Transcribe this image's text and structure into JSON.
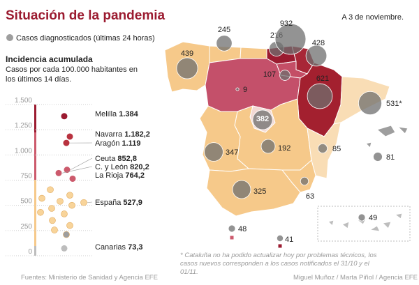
{
  "header": {
    "title": "Situación de la pandemia",
    "date": "A 3 de noviembre."
  },
  "legend": {
    "bubbles": "Casos diagnosticados (últimas 24 horas)"
  },
  "incidence": {
    "title": "Incidencia acumulada",
    "subtitle": "Casos por cada 100.000 habitantes en los últimos 14 días.",
    "ylim": [
      0,
      1500
    ],
    "yticks": [
      {
        "value": 1500,
        "label": "1.500"
      },
      {
        "value": 1250,
        "label": "1.250"
      },
      {
        "value": 1000,
        "label": "1.000"
      },
      750,
      500,
      250,
      0
    ],
    "labeled": [
      {
        "name": "Melilla",
        "value": 1384,
        "label": "1.384",
        "color": "#9b1b30"
      },
      {
        "name": "Navarra",
        "value": 1182.2,
        "label": "1.182,2",
        "color": "#b8323f"
      },
      {
        "name": "Aragón",
        "value": 1119,
        "label": "1.119",
        "color": "#b8323f"
      },
      {
        "name": "Ceuta",
        "value": 852.8,
        "label": "852,8",
        "color": "#cc5a6c"
      },
      {
        "name": "C. y León",
        "value": 820.2,
        "label": "820,2",
        "color": "#cc5a6c"
      },
      {
        "name": "La Rioja",
        "value": 764.2,
        "label": "764,2",
        "color": "#cc5a6c"
      },
      {
        "name": "España",
        "value": 527.9,
        "label": "527,9",
        "color": "#f8d49a"
      },
      {
        "name": "Canarias",
        "value": 73.3,
        "label": "73,3",
        "color": "#bdbdbd"
      }
    ],
    "unlabeled": [
      {
        "value": 655,
        "color": "#f8d49a"
      },
      {
        "value": 600,
        "color": "#f8d49a"
      },
      {
        "value": 570,
        "color": "#f8d49a"
      },
      {
        "value": 540,
        "color": "#f8d49a"
      },
      {
        "value": 500,
        "color": "#f8d49a"
      },
      {
        "value": 470,
        "color": "#f8d49a"
      },
      {
        "value": 430,
        "color": "#f8d49a"
      },
      {
        "value": 415,
        "color": "#f8d49a"
      },
      {
        "value": 350,
        "color": "#f8d49a"
      },
      {
        "value": 300,
        "color": "#f8d49a"
      },
      {
        "value": 255,
        "color": "#f8d49a"
      },
      {
        "value": 210,
        "color": "#9e9e9e"
      }
    ]
  },
  "map": {
    "bubble_color": "#6f6f6f",
    "bubbles": [
      {
        "value": 245
      },
      {
        "value": 216
      },
      {
        "value": 932
      },
      {
        "value": 428
      },
      {
        "value": 439
      },
      {
        "value": 107
      },
      {
        "value": 621
      },
      {
        "value": 9
      },
      {
        "value": 382
      },
      {
        "value": 531,
        "label": "531*"
      },
      {
        "value": 347
      },
      {
        "value": 192
      },
      {
        "value": 85
      },
      {
        "value": 81
      },
      {
        "value": 325
      },
      {
        "value": 63
      },
      {
        "value": 48
      },
      {
        "value": 41
      },
      {
        "value": 49
      }
    ]
  },
  "footnote": "* Cataluña no ha podido actualizar hoy por problemas técnicos, los casos nuevos corresponden a los casos notificados el 31/10 y el 01/11.",
  "sources": {
    "left": "Fuentes: Ministerio de Sanidad y Agencia EFE",
    "right": "Miguel Muñoz / Marta Piñol / Agencia EFE"
  }
}
